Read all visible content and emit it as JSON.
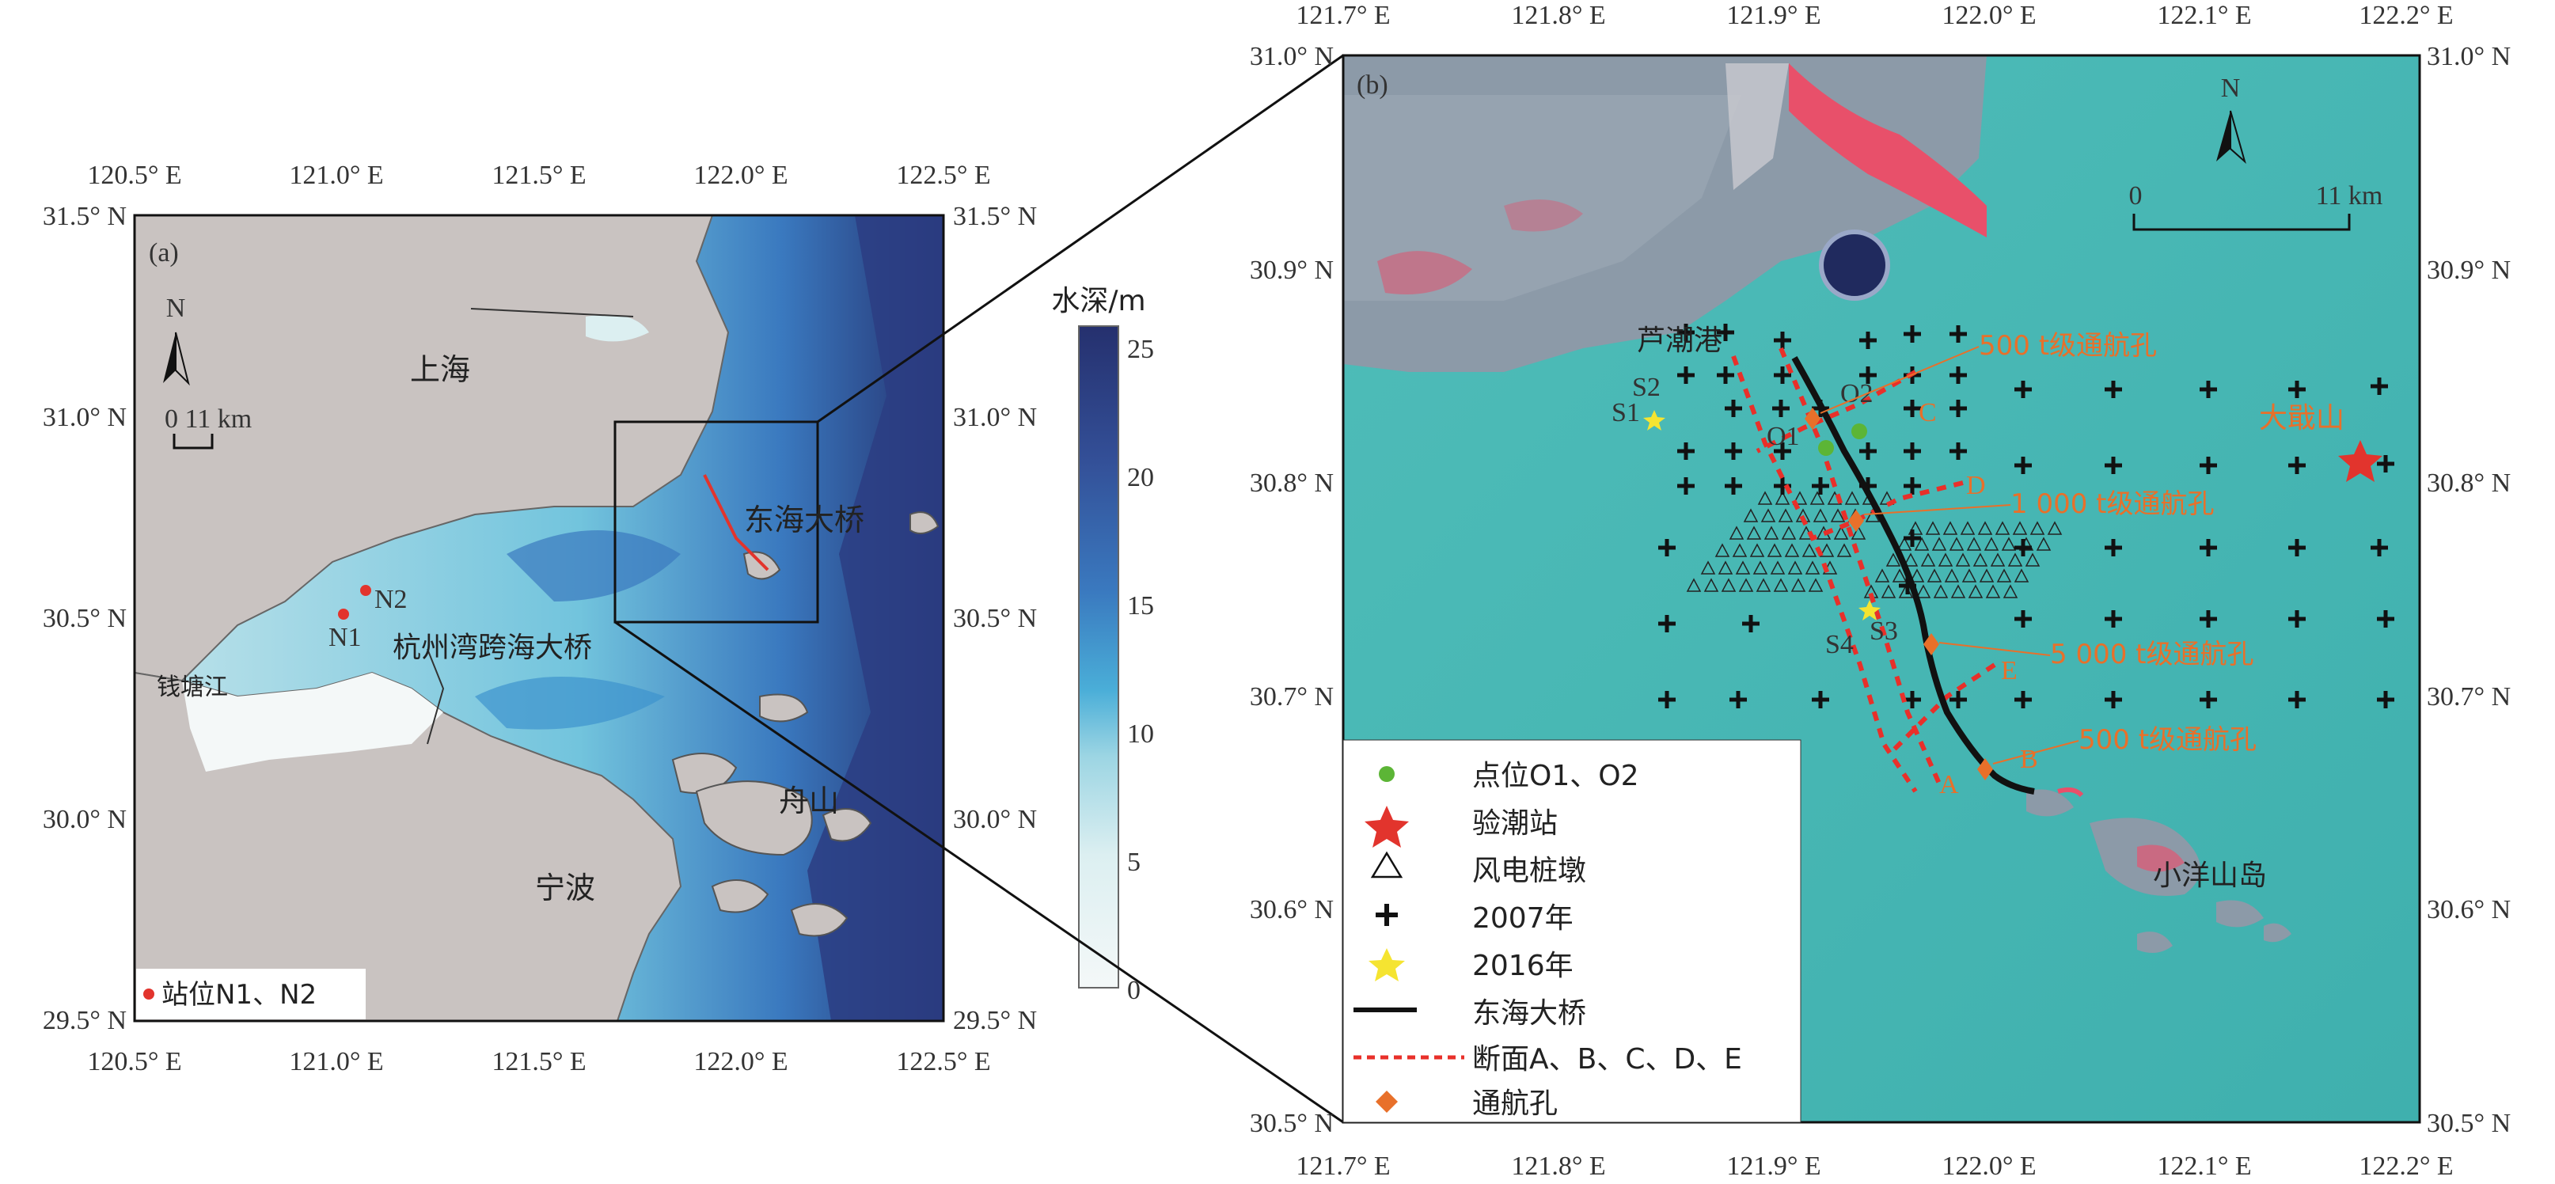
{
  "panel_a": {
    "tag": "(a)",
    "lon_ticks": [
      "120.5° E",
      "121.0° E",
      "121.5° E",
      "122.0° E",
      "122.5° E"
    ],
    "lat_ticks": [
      "31.5° N",
      "31.0° N",
      "30.5° N",
      "30.0° N",
      "29.5° N"
    ],
    "north": "N",
    "scale_text": "0 11 km",
    "places": {
      "shanghai": "上海",
      "donghai_bridge": "东海大桥",
      "hangzhou_bay_bridge": "杭州湾跨海大桥",
      "qiantang": "钱塘江",
      "zhoushan": "舟山",
      "ningbo": "宁波"
    },
    "stations": [
      "N1",
      "N2"
    ],
    "legend": "站位N1、N2"
  },
  "colorbar": {
    "title": "水深/m",
    "ticks": [
      "0",
      "5",
      "10",
      "15",
      "20",
      "25"
    ],
    "colors": [
      "#f4f8f8",
      "#dceff1",
      "#bfe3ea",
      "#9cd5e3",
      "#72c4dd",
      "#4aaed8",
      "#3d93cd",
      "#3a79bf",
      "#3861ab",
      "#334f97",
      "#2c3d82",
      "#25306e"
    ]
  },
  "panel_b": {
    "tag": "(b)",
    "lon_ticks": [
      "121.7° E",
      "121.8° E",
      "121.9° E",
      "122.0° E",
      "122.1° E",
      "122.2° E"
    ],
    "lat_ticks": [
      "31.0° N",
      "30.9° N",
      "30.8° N",
      "30.7° N",
      "30.6° N",
      "30.5° N"
    ],
    "north": "N",
    "scale_zero": "0",
    "scale_km": "11 km",
    "places": {
      "luchao": "芦潮港",
      "dashan": "大戢山",
      "xiaoyangshan": "小洋山岛"
    },
    "channels": [
      "500 t级通航孔",
      "1 000 t级通航孔",
      "5 000 t级通航孔",
      "500 t级通航孔"
    ],
    "sections": [
      "A",
      "B",
      "C",
      "D",
      "E"
    ],
    "points": [
      "O1",
      "O2"
    ],
    "stations_2016": [
      "S1",
      "S2",
      "S3",
      "S4"
    ],
    "legend": [
      "点位O1、O2",
      "验潮站",
      "风电桩墩",
      "2007年",
      "2016年",
      "东海大桥",
      "断面A、B、C、D、E",
      "通航孔"
    ],
    "colors": {
      "sea": "#45b7b4",
      "bridge": "#111111",
      "section": "#e8302a",
      "orange": "#e8702a",
      "green": "#5cb536",
      "yellow": "#f5e431",
      "star_red": "#e2342d"
    }
  }
}
